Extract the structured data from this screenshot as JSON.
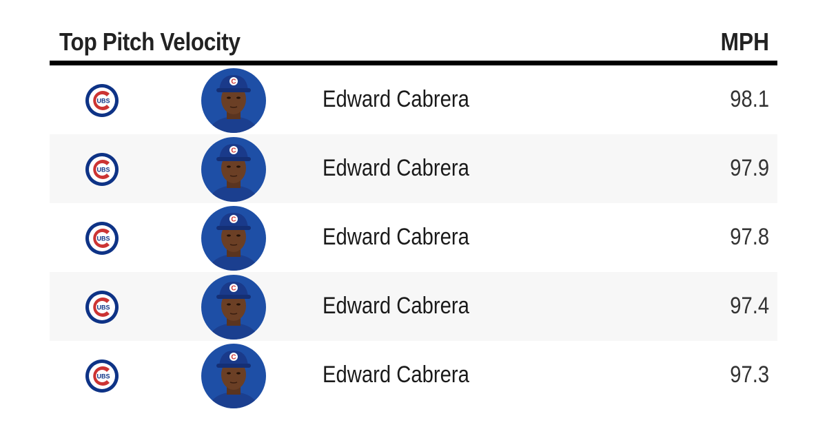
{
  "chart_data": {
    "type": "table",
    "title": "Top Pitch Velocity",
    "value_label": "MPH",
    "columns": [
      "team-logo",
      "player-photo",
      "player",
      "MPH"
    ],
    "rows": [
      {
        "team_icon": "cubs-logo-icon",
        "player_icon": "player-headshot-icon",
        "player": "Edward Cabrera",
        "value": "98.1"
      },
      {
        "team_icon": "cubs-logo-icon",
        "player_icon": "player-headshot-icon",
        "player": "Edward Cabrera",
        "value": "97.9"
      },
      {
        "team_icon": "cubs-logo-icon",
        "player_icon": "player-headshot-icon",
        "player": "Edward Cabrera",
        "value": "97.8"
      },
      {
        "team_icon": "cubs-logo-icon",
        "player_icon": "player-headshot-icon",
        "player": "Edward Cabrera",
        "value": "97.4"
      },
      {
        "team_icon": "cubs-logo-icon",
        "player_icon": "player-headshot-icon",
        "player": "Edward Cabrera",
        "value": "97.3"
      }
    ]
  },
  "colors": {
    "cubs_blue": "#0e3386",
    "cubs_red": "#cc3433",
    "row_alt": "#f7f7f7",
    "rule": "#000000"
  }
}
